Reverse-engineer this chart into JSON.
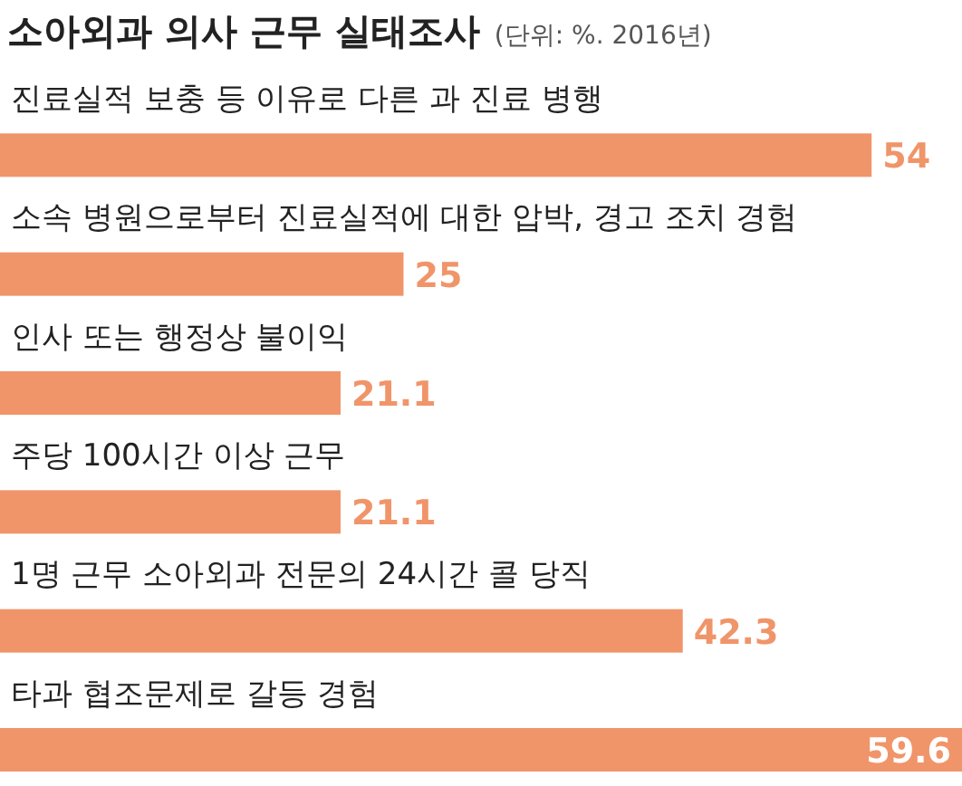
{
  "chart_data": {
    "type": "bar",
    "orientation": "horizontal",
    "title": "소아외과 의사 근무 실태조사",
    "subtitle": "(단위: %. 2016년)",
    "categories": [
      "진료실적 보충 등 이유로 다른 과 진료 병행",
      "소속 병원으로부터 진료실적에 대한 압박, 경고 조치 경험",
      "인사 또는 행정상 불이익",
      "주당 100시간 이상 근무",
      "1명 근무 소아외과 전문의 24시간 콜 당직",
      "타과 협조문제로 갈등 경험"
    ],
    "values": [
      54,
      25,
      21.1,
      21.1,
      42.3,
      59.6
    ],
    "color": "#f0956a",
    "data_labels": true
  }
}
